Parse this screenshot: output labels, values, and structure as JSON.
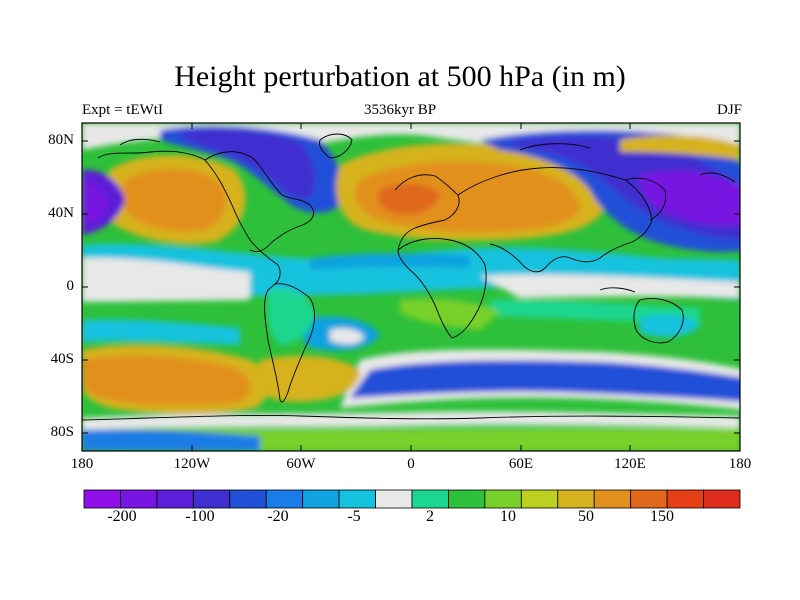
{
  "title": "Height perturbation at 500 hPa (in m)",
  "left_label": "Expt = tEWtI",
  "center_label": "3536kyr BP",
  "right_label": "DJF",
  "lat_ticks": [
    "80N",
    "40N",
    "0",
    "40S",
    "80S"
  ],
  "lon_ticks": [
    "180",
    "120W",
    "60W",
    "0",
    "60E",
    "120E",
    "180"
  ],
  "colorbar": {
    "labels": [
      "-200",
      "-100",
      "-20",
      "-5",
      "2",
      "10",
      "50",
      "150"
    ],
    "colors": [
      "#8f10e8",
      "#7716e0",
      "#5c1ed8",
      "#3f2fd0",
      "#2150d8",
      "#1a7ce6",
      "#11a2e0",
      "#15c2de",
      "#e8e8e8",
      "#1ad690",
      "#2ec03a",
      "#78d02a",
      "#bcd020",
      "#d6b21e",
      "#e2901c",
      "#e0681a",
      "#e64016",
      "#e02c1c"
    ]
  }
}
